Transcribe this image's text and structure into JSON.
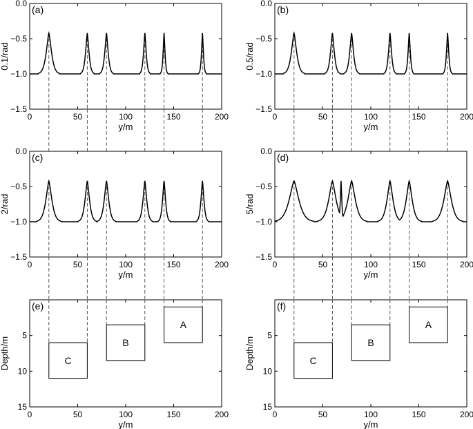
{
  "chart_data": [
    {
      "id": "a",
      "type": "line",
      "panel_label": "(a)",
      "xlabel": "y/m",
      "ylabel": "0.1/rad",
      "xlim": [
        0,
        200
      ],
      "ylim": [
        -1.5,
        0.0
      ],
      "xticks": [
        0,
        50,
        100,
        150,
        200
      ],
      "yticks": [
        0.0,
        -0.5,
        -1.0,
        -1.5
      ],
      "ytick_labels": [
        "0.0",
        "−0.5",
        "−1.0",
        "−1.5"
      ],
      "baseline": -1.0,
      "peaks": [
        {
          "x": 20,
          "y": -0.42,
          "halfwidth": 7
        },
        {
          "x": 60,
          "y": -0.42,
          "halfwidth": 4.5
        },
        {
          "x": 80,
          "y": -0.42,
          "halfwidth": 4.5
        },
        {
          "x": 120,
          "y": -0.42,
          "halfwidth": 3.5
        },
        {
          "x": 140,
          "y": -0.42,
          "halfwidth": 2.5
        },
        {
          "x": 180,
          "y": -0.42,
          "halfwidth": 2.5
        }
      ],
      "dashed_x": [
        20,
        60,
        80,
        120,
        140,
        180
      ]
    },
    {
      "id": "b",
      "type": "line",
      "panel_label": "(b)",
      "xlabel": "y/m",
      "ylabel": "0.5/rad",
      "xlim": [
        0,
        200
      ],
      "ylim": [
        -1.5,
        0.0
      ],
      "xticks": [
        0,
        50,
        100,
        150,
        200
      ],
      "yticks": [
        0.0,
        -0.5,
        -1.0,
        -1.5
      ],
      "ytick_labels": [
        "0.0",
        "−0.5",
        "−1.0",
        "−1.5"
      ],
      "baseline": -1.0,
      "peaks": [
        {
          "x": 20,
          "y": -0.42,
          "halfwidth": 7
        },
        {
          "x": 60,
          "y": -0.42,
          "halfwidth": 5
        },
        {
          "x": 80,
          "y": -0.42,
          "halfwidth": 5
        },
        {
          "x": 120,
          "y": -0.42,
          "halfwidth": 4
        },
        {
          "x": 140,
          "y": -0.42,
          "halfwidth": 3
        },
        {
          "x": 180,
          "y": -0.42,
          "halfwidth": 3
        }
      ],
      "dashed_x": [
        20,
        60,
        80,
        120,
        140,
        180
      ]
    },
    {
      "id": "c",
      "type": "line",
      "panel_label": "(c)",
      "xlabel": "y/m",
      "ylabel": "2/rad",
      "xlim": [
        0,
        200
      ],
      "ylim": [
        -1.5,
        0.0
      ],
      "xticks": [
        0,
        50,
        100,
        150,
        200
      ],
      "yticks": [
        0.0,
        -0.5,
        -1.0,
        -1.5
      ],
      "ytick_labels": [
        "0.0",
        "−0.5",
        "−1.0",
        "−1.5"
      ],
      "baseline": -1.0,
      "peaks": [
        {
          "x": 20,
          "y": -0.42,
          "halfwidth": 8
        },
        {
          "x": 60,
          "y": -0.42,
          "halfwidth": 6
        },
        {
          "x": 80,
          "y": -0.42,
          "halfwidth": 6
        },
        {
          "x": 120,
          "y": -0.42,
          "halfwidth": 5
        },
        {
          "x": 140,
          "y": -0.42,
          "halfwidth": 4
        },
        {
          "x": 180,
          "y": -0.42,
          "halfwidth": 4
        }
      ],
      "dashed_x": [
        20,
        60,
        80,
        120,
        140,
        180
      ]
    },
    {
      "id": "d",
      "type": "line",
      "panel_label": "(d)",
      "xlabel": "y/m",
      "ylabel": "5/rad",
      "xlim": [
        0,
        200
      ],
      "ylim": [
        -1.5,
        0.0
      ],
      "xticks": [
        0,
        50,
        100,
        150,
        200
      ],
      "yticks": [
        0.0,
        -0.5,
        -1.0,
        -1.5
      ],
      "ytick_labels": [
        "0.0",
        "−0.5",
        "−1.0",
        "−1.5"
      ],
      "baseline": -1.0,
      "peaks": [
        {
          "x": 20,
          "y": -0.42,
          "halfwidth": 13
        },
        {
          "x": 60,
          "y": -0.42,
          "halfwidth": 10
        },
        {
          "x": 69,
          "y": -0.42,
          "halfwidth": 2
        },
        {
          "x": 80,
          "y": -0.42,
          "halfwidth": 10
        },
        {
          "x": 120,
          "y": -0.42,
          "halfwidth": 8
        },
        {
          "x": 140,
          "y": -0.42,
          "halfwidth": 8
        },
        {
          "x": 180,
          "y": -0.42,
          "halfwidth": 10
        }
      ],
      "dashed_x": [
        20,
        60,
        80,
        120,
        140,
        180
      ]
    },
    {
      "id": "e",
      "type": "diagram",
      "panel_label": "(e)",
      "xlabel": "y/m",
      "ylabel": "Depth/m",
      "xlim": [
        0,
        200
      ],
      "ylim": [
        0,
        15
      ],
      "xticks": [
        0,
        50,
        100,
        150,
        200
      ],
      "yticks": [
        5,
        10,
        15
      ],
      "ytick_labels": [
        "5",
        "10",
        "15"
      ],
      "y_inverted": true,
      "blocks": [
        {
          "label": "A",
          "x": [
            140,
            180
          ],
          "depth": [
            1,
            6
          ]
        },
        {
          "label": "B",
          "x": [
            80,
            120
          ],
          "depth": [
            3.5,
            8.5
          ]
        },
        {
          "label": "C",
          "x": [
            20,
            60
          ],
          "depth": [
            6,
            11
          ]
        }
      ],
      "dashed_x": [
        20,
        60,
        80,
        120,
        140,
        180
      ]
    },
    {
      "id": "f",
      "type": "diagram",
      "panel_label": "(f)",
      "xlabel": "y/m",
      "ylabel": "Depth/m",
      "xlim": [
        0,
        200
      ],
      "ylim": [
        0,
        15
      ],
      "xticks": [
        0,
        50,
        100,
        150,
        200
      ],
      "yticks": [
        5,
        10,
        15
      ],
      "ytick_labels": [
        "5",
        "10",
        "15"
      ],
      "y_inverted": true,
      "blocks": [
        {
          "label": "A",
          "x": [
            140,
            180
          ],
          "depth": [
            1,
            6
          ]
        },
        {
          "label": "B",
          "x": [
            80,
            120
          ],
          "depth": [
            3.5,
            8.5
          ]
        },
        {
          "label": "C",
          "x": [
            20,
            60
          ],
          "depth": [
            6,
            11
          ]
        }
      ],
      "dashed_x": [
        20,
        60,
        80,
        120,
        140,
        180
      ]
    }
  ]
}
